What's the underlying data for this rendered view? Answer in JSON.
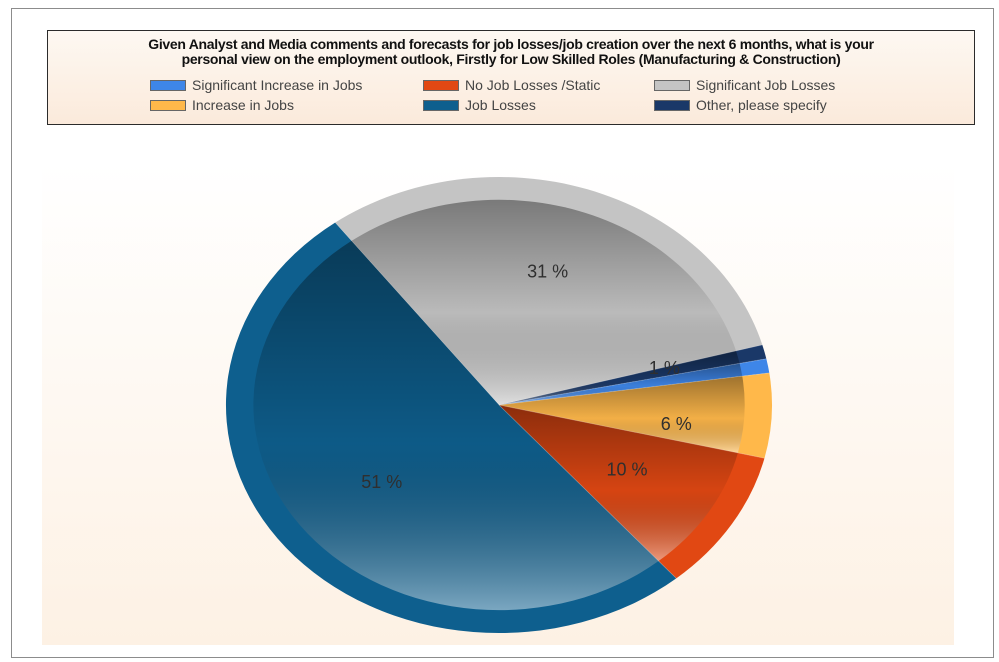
{
  "chart_data": {
    "type": "pie",
    "title": "Given Analyst and Media comments and forecasts for job losses/job creation over the next 6 months, what is your personal view on the employment outlook, Firstly for Low Skilled Roles (Manufacturing & Construction)",
    "title_lines": [
      "Given Analyst and Media comments and forecasts for job losses/job creation over the next 6 months, what is your",
      "personal view on the employment outlook, Firstly for Low Skilled Roles (Manufacturing & Construction)"
    ],
    "legend_placement": "top",
    "legend": [
      {
        "name": "Significant Increase in Jobs",
        "color": "#3e86e8"
      },
      {
        "name": "No Job Losses /Static",
        "color": "#e14813"
      },
      {
        "name": "Significant Job Losses",
        "color": "#c4c4c4"
      },
      {
        "name": "Increase in Jobs",
        "color": "#ffb84a"
      },
      {
        "name": "Job Losses",
        "color": "#0e5f8e"
      },
      {
        "name": "Other, please specify",
        "color": "#1a3868"
      }
    ],
    "slices": [
      {
        "name": "Significant Job Losses",
        "value": 31,
        "label": "31 %",
        "color": "#c4c4c4"
      },
      {
        "name": "Other, please specify",
        "value": 1,
        "label": "",
        "color": "#1a3868"
      },
      {
        "name": "Significant Increase in Jobs",
        "value": 1,
        "label": "1 %",
        "color": "#3e86e8"
      },
      {
        "name": "Increase in Jobs",
        "value": 6,
        "label": "6 %",
        "color": "#ffb84a"
      },
      {
        "name": "No Job Losses /Static",
        "value": 10,
        "label": "10 %",
        "color": "#e14813"
      },
      {
        "name": "Job Losses",
        "value": 51,
        "label": "51 %",
        "color": "#0e5f8e"
      }
    ]
  }
}
